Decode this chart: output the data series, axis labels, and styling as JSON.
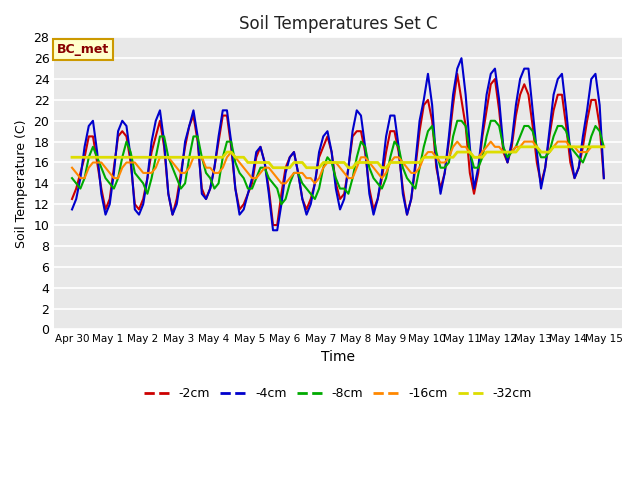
{
  "title": "Soil Temperatures Set C",
  "xlabel": "Time",
  "ylabel": "Soil Temperature (C)",
  "ylim": [
    0,
    28
  ],
  "yticks": [
    0,
    2,
    4,
    6,
    8,
    10,
    12,
    14,
    16,
    18,
    20,
    22,
    24,
    26,
    28
  ],
  "figure_bg": "#ffffff",
  "plot_bg_color": "#e8e8e8",
  "grid_color": "#ffffff",
  "series": {
    "-2cm": {
      "color": "#cc0000",
      "lw": 1.5
    },
    "-4cm": {
      "color": "#0000cc",
      "lw": 1.5
    },
    "-8cm": {
      "color": "#00aa00",
      "lw": 1.5
    },
    "-16cm": {
      "color": "#ff8800",
      "lw": 1.5
    },
    "-32cm": {
      "color": "#dddd00",
      "lw": 2.0
    }
  },
  "legend_label": "BC_met",
  "legend_bg": "#ffffcc",
  "legend_border": "#cc9900",
  "legend_text_color": "#880000",
  "x_labels": [
    "Apr 30",
    "May 1",
    "May 2",
    "May 3",
    "May 4",
    "May 5",
    "May 6",
    "May 7",
    "May 8",
    "May 9",
    "May 10",
    "May 11",
    "May 12",
    "May 13",
    "May 14",
    "May 15"
  ],
  "n_days": 16,
  "pts_per_day": 8,
  "cm2_data": [
    12.5,
    13.5,
    15.0,
    16.5,
    18.5,
    18.5,
    16.0,
    13.5,
    11.5,
    12.5,
    15.5,
    18.5,
    19.0,
    18.5,
    16.0,
    12.0,
    11.5,
    12.5,
    14.5,
    17.0,
    18.5,
    20.0,
    17.5,
    13.0,
    11.0,
    12.5,
    15.0,
    17.5,
    19.5,
    20.5,
    18.0,
    13.5,
    12.5,
    13.5,
    15.5,
    18.0,
    20.5,
    20.5,
    17.5,
    13.5,
    11.5,
    12.0,
    13.0,
    14.0,
    16.5,
    17.5,
    16.0,
    13.5,
    10.0,
    10.0,
    13.0,
    15.5,
    16.5,
    17.0,
    15.0,
    12.5,
    11.5,
    12.5,
    14.0,
    16.5,
    17.5,
    18.5,
    17.0,
    14.0,
    12.5,
    13.0,
    15.5,
    18.5,
    19.0,
    19.0,
    17.0,
    13.5,
    11.5,
    12.5,
    14.5,
    17.0,
    19.0,
    19.0,
    17.0,
    13.5,
    11.0,
    12.5,
    15.5,
    19.0,
    21.5,
    22.0,
    20.0,
    15.5,
    13.5,
    15.0,
    18.0,
    21.5,
    24.5,
    22.0,
    19.5,
    15.0,
    13.0,
    15.0,
    18.5,
    21.0,
    23.5,
    24.0,
    21.0,
    17.0,
    16.0,
    17.5,
    20.5,
    22.5,
    23.5,
    22.5,
    19.5,
    16.0,
    14.0,
    15.5,
    18.5,
    21.0,
    22.5,
    22.5,
    19.5,
    16.0,
    14.5,
    15.5,
    17.5,
    20.0,
    22.0,
    22.0,
    19.5,
    14.5
  ],
  "cm4_data": [
    11.5,
    12.5,
    14.5,
    17.5,
    19.5,
    20.0,
    17.0,
    13.0,
    11.0,
    12.0,
    15.0,
    19.0,
    20.0,
    19.5,
    16.5,
    11.5,
    11.0,
    12.0,
    14.5,
    18.0,
    20.0,
    21.0,
    18.0,
    13.0,
    11.0,
    12.0,
    14.5,
    18.0,
    19.5,
    21.0,
    18.5,
    13.0,
    12.5,
    13.5,
    15.5,
    18.5,
    21.0,
    21.0,
    18.0,
    13.5,
    11.0,
    11.5,
    13.0,
    14.5,
    17.0,
    17.5,
    16.0,
    13.0,
    9.5,
    9.5,
    12.0,
    15.0,
    16.5,
    17.0,
    15.0,
    12.5,
    11.0,
    12.0,
    14.0,
    17.0,
    18.5,
    19.0,
    17.0,
    13.5,
    11.5,
    12.5,
    15.5,
    19.0,
    21.0,
    20.5,
    17.5,
    13.0,
    11.0,
    12.5,
    15.0,
    18.5,
    20.5,
    20.5,
    17.5,
    13.0,
    11.0,
    12.5,
    16.0,
    20.0,
    22.0,
    24.5,
    21.5,
    16.0,
    13.0,
    15.0,
    18.5,
    22.5,
    25.0,
    26.0,
    22.5,
    17.5,
    13.5,
    15.5,
    19.0,
    22.5,
    24.5,
    25.0,
    22.0,
    17.5,
    16.0,
    18.0,
    21.5,
    24.0,
    25.0,
    25.0,
    21.0,
    17.0,
    13.5,
    15.5,
    19.0,
    22.5,
    24.0,
    24.5,
    21.0,
    17.0,
    14.5,
    15.5,
    18.5,
    21.0,
    24.0,
    24.5,
    21.5,
    14.5
  ],
  "cm8_data": [
    14.5,
    14.0,
    13.5,
    14.5,
    16.5,
    17.5,
    16.5,
    15.5,
    14.5,
    14.0,
    13.5,
    14.5,
    16.5,
    18.0,
    17.0,
    15.0,
    14.5,
    14.0,
    13.0,
    14.5,
    16.5,
    18.5,
    18.5,
    16.5,
    15.5,
    14.5,
    13.5,
    14.0,
    16.5,
    18.5,
    18.5,
    16.5,
    15.0,
    14.5,
    13.5,
    14.0,
    16.5,
    18.0,
    18.0,
    16.0,
    15.0,
    14.5,
    13.5,
    13.5,
    14.5,
    15.5,
    15.5,
    14.5,
    14.0,
    13.5,
    12.0,
    12.5,
    14.0,
    15.0,
    15.0,
    14.0,
    13.5,
    13.0,
    12.5,
    13.5,
    15.5,
    16.5,
    16.0,
    14.5,
    13.5,
    13.5,
    13.0,
    14.5,
    16.5,
    18.0,
    17.5,
    15.5,
    14.5,
    14.0,
    13.5,
    14.5,
    16.5,
    18.0,
    17.5,
    15.5,
    14.5,
    14.0,
    13.5,
    15.5,
    17.5,
    19.0,
    19.5,
    17.0,
    15.5,
    15.5,
    16.0,
    18.5,
    20.0,
    20.0,
    19.5,
    17.0,
    15.5,
    15.5,
    16.5,
    18.5,
    20.0,
    20.0,
    19.5,
    17.5,
    16.5,
    17.0,
    17.5,
    18.5,
    19.5,
    19.5,
    19.0,
    17.5,
    16.5,
    16.5,
    17.0,
    18.5,
    19.5,
    19.5,
    19.0,
    17.5,
    17.0,
    16.5,
    16.0,
    17.0,
    18.5,
    19.5,
    19.0,
    17.5
  ],
  "cm16_data": [
    15.5,
    15.0,
    14.5,
    14.5,
    15.5,
    16.0,
    16.0,
    16.0,
    15.5,
    15.0,
    14.5,
    14.5,
    15.5,
    16.0,
    16.0,
    16.0,
    15.5,
    15.0,
    15.0,
    15.0,
    15.5,
    16.5,
    16.5,
    16.5,
    16.0,
    15.5,
    15.0,
    15.0,
    15.5,
    16.5,
    16.5,
    16.5,
    15.5,
    15.5,
    15.0,
    15.0,
    15.5,
    16.5,
    17.0,
    16.5,
    16.0,
    15.5,
    15.0,
    14.5,
    14.5,
    15.0,
    15.5,
    15.5,
    15.0,
    14.5,
    14.0,
    14.0,
    14.5,
    15.0,
    15.0,
    15.0,
    14.5,
    14.5,
    14.0,
    14.5,
    15.5,
    16.0,
    16.0,
    16.0,
    15.5,
    15.0,
    14.5,
    14.5,
    15.5,
    16.5,
    16.5,
    16.0,
    15.5,
    15.0,
    14.5,
    15.0,
    16.0,
    16.5,
    16.5,
    16.0,
    15.5,
    15.0,
    15.0,
    15.5,
    16.5,
    17.0,
    17.0,
    16.5,
    16.0,
    16.0,
    16.5,
    17.5,
    18.0,
    17.5,
    17.5,
    17.0,
    16.5,
    16.5,
    17.0,
    17.5,
    18.0,
    17.5,
    17.5,
    17.0,
    17.0,
    17.0,
    17.5,
    17.5,
    18.0,
    18.0,
    18.0,
    17.5,
    17.0,
    17.0,
    17.0,
    17.5,
    18.0,
    18.0,
    18.0,
    17.5,
    17.5,
    17.0,
    17.0,
    17.0,
    17.5,
    17.5,
    17.5,
    17.5
  ],
  "cm32_data": [
    16.5,
    16.5,
    16.5,
    16.5,
    16.5,
    16.5,
    16.5,
    16.5,
    16.5,
    16.5,
    16.5,
    16.5,
    16.5,
    16.5,
    16.5,
    16.5,
    16.5,
    16.5,
    16.5,
    16.5,
    16.5,
    16.5,
    16.5,
    16.5,
    16.5,
    16.5,
    16.5,
    16.5,
    16.5,
    16.5,
    16.5,
    16.5,
    16.5,
    16.5,
    16.5,
    16.5,
    16.5,
    17.0,
    17.0,
    16.5,
    16.5,
    16.5,
    16.0,
    16.0,
    16.0,
    16.0,
    16.0,
    16.0,
    15.5,
    15.5,
    15.5,
    15.5,
    15.5,
    16.0,
    16.0,
    16.0,
    15.5,
    15.5,
    15.5,
    15.5,
    16.0,
    16.0,
    16.0,
    16.0,
    16.0,
    16.0,
    15.5,
    15.5,
    16.0,
    16.0,
    16.0,
    16.0,
    16.0,
    16.0,
    15.5,
    15.5,
    16.0,
    16.0,
    16.0,
    16.0,
    16.0,
    16.0,
    16.0,
    16.0,
    16.5,
    16.5,
    16.5,
    16.5,
    16.5,
    16.5,
    16.5,
    16.5,
    17.0,
    17.0,
    17.0,
    17.0,
    16.5,
    16.5,
    16.5,
    17.0,
    17.0,
    17.0,
    17.0,
    17.0,
    17.0,
    17.0,
    17.0,
    17.5,
    17.5,
    17.5,
    17.5,
    17.5,
    17.0,
    17.0,
    17.0,
    17.5,
    17.5,
    17.5,
    17.5,
    17.5,
    17.5,
    17.5,
    17.5,
    17.5,
    17.5,
    17.5,
    17.5,
    17.5
  ]
}
